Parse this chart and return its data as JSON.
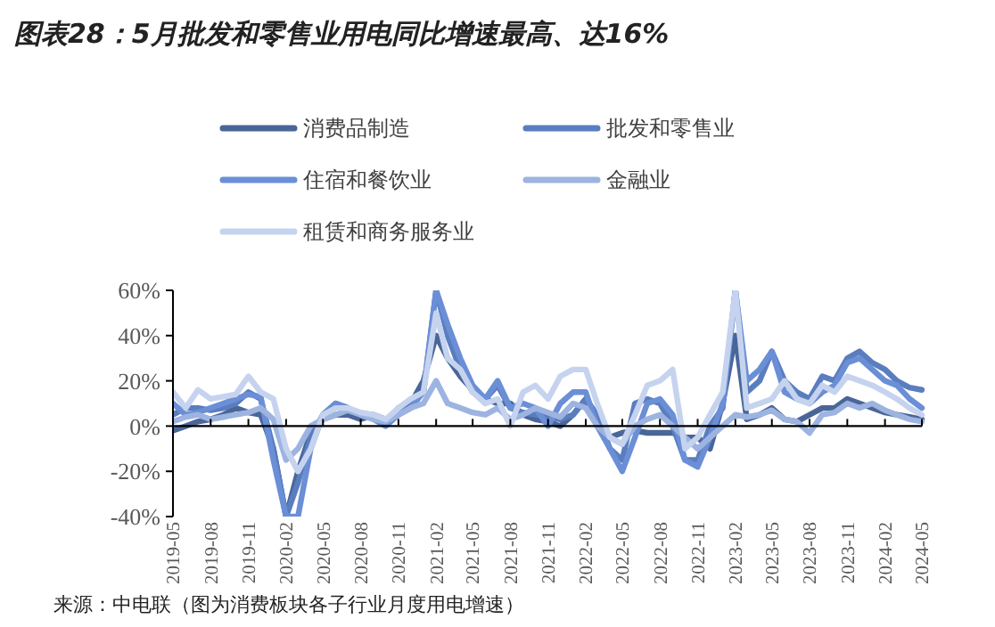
{
  "chart_data": {
    "type": "line",
    "title": "图表28：5月批发和零售业用电同比增速最高、达16%",
    "annotations": [
      "来源：中电联（图为消费板块各子行业月度用电增速）"
    ],
    "x": [
      "2019-05",
      "2019-06",
      "2019-07",
      "2019-08",
      "2019-09",
      "2019-10",
      "2019-11",
      "2019-12",
      "2020-01",
      "2020-02",
      "2020-03",
      "2020-04",
      "2020-05",
      "2020-06",
      "2020-07",
      "2020-08",
      "2020-09",
      "2020-10",
      "2020-11",
      "2020-12",
      "2021-01",
      "2021-02",
      "2021-03",
      "2021-04",
      "2021-05",
      "2021-06",
      "2021-07",
      "2021-08",
      "2021-09",
      "2021-10",
      "2021-11",
      "2021-12",
      "2022-01",
      "2022-02",
      "2022-03",
      "2022-04",
      "2022-05",
      "2022-06",
      "2022-07",
      "2022-08",
      "2022-09",
      "2022-10",
      "2022-11",
      "2022-12",
      "2023-01",
      "2023-02",
      "2023-03",
      "2023-04",
      "2023-05",
      "2023-06",
      "2023-07",
      "2023-08",
      "2023-09",
      "2023-10",
      "2023-11",
      "2023-12",
      "2024-01",
      "2024-02",
      "2024-03",
      "2024-04",
      "2024-05"
    ],
    "xlim": [
      "2019-05",
      "2024-05"
    ],
    "xticks": [
      "2019-05",
      "2019-08",
      "2019-11",
      "2020-02",
      "2020-05",
      "2020-08",
      "2020-11",
      "2021-02",
      "2021-05",
      "2021-08",
      "2021-11",
      "2022-02",
      "2022-05",
      "2022-08",
      "2022-11",
      "2023-02",
      "2023-05",
      "2023-08",
      "2023-11",
      "2024-02",
      "2024-05"
    ],
    "ylim": [
      -40,
      60
    ],
    "yticks": [
      {
        "value": -40,
        "label": "-40%"
      },
      {
        "value": -20,
        "label": "-20%"
      },
      {
        "value": 0,
        "label": "0%"
      },
      {
        "value": 20,
        "label": "20%"
      },
      {
        "value": 40,
        "label": "40%"
      },
      {
        "value": 60,
        "label": "60%"
      }
    ],
    "legend": "top",
    "marker": "none",
    "line_style": "solid",
    "series": [
      {
        "name": "消费品制造",
        "color": "#4a6699",
        "values": [
          -2,
          0,
          2,
          3,
          5,
          8,
          6,
          5,
          -10,
          -40,
          -20,
          -3,
          3,
          5,
          5,
          3,
          5,
          2,
          8,
          10,
          20,
          40,
          30,
          22,
          16,
          12,
          10,
          10,
          5,
          3,
          2,
          0,
          5,
          12,
          0,
          -5,
          -3,
          -2,
          -3,
          -3,
          -3,
          -5,
          -5,
          -10,
          10,
          40,
          3,
          5,
          8,
          3,
          2,
          5,
          8,
          8,
          12,
          10,
          8,
          6,
          5,
          4,
          3
        ]
      },
      {
        "name": "批发和零售业",
        "color": "#5a7dbf",
        "values": [
          5,
          8,
          8,
          7,
          8,
          10,
          15,
          12,
          -10,
          -40,
          -25,
          -5,
          5,
          10,
          8,
          5,
          5,
          3,
          5,
          10,
          15,
          60,
          40,
          25,
          15,
          12,
          18,
          8,
          6,
          5,
          4,
          3,
          5,
          12,
          5,
          -10,
          -15,
          10,
          12,
          10,
          0,
          -15,
          -15,
          0,
          8,
          60,
          15,
          20,
          33,
          20,
          15,
          12,
          22,
          20,
          30,
          33,
          28,
          25,
          20,
          17,
          16
        ]
      },
      {
        "name": "住宿和餐饮业",
        "color": "#6b8fd6",
        "values": [
          10,
          5,
          6,
          8,
          10,
          12,
          14,
          13,
          -15,
          -40,
          -40,
          -10,
          5,
          10,
          8,
          5,
          3,
          0,
          5,
          8,
          15,
          60,
          45,
          30,
          18,
          12,
          20,
          8,
          10,
          8,
          0,
          10,
          15,
          15,
          0,
          -10,
          -20,
          -5,
          10,
          12,
          5,
          -15,
          -18,
          -5,
          10,
          60,
          20,
          25,
          33,
          15,
          12,
          10,
          15,
          18,
          28,
          30,
          25,
          20,
          18,
          12,
          8
        ]
      },
      {
        "name": "金融业",
        "color": "#9db3e0",
        "values": [
          2,
          4,
          5,
          3,
          4,
          5,
          6,
          8,
          3,
          -15,
          -10,
          0,
          3,
          5,
          7,
          5,
          3,
          2,
          5,
          8,
          10,
          20,
          10,
          8,
          6,
          5,
          8,
          3,
          5,
          8,
          6,
          4,
          10,
          8,
          0,
          -5,
          -8,
          0,
          3,
          5,
          0,
          -5,
          -10,
          -5,
          0,
          5,
          4,
          5,
          7,
          3,
          2,
          -3,
          5,
          6,
          10,
          8,
          10,
          7,
          5,
          3,
          2
        ]
      },
      {
        "name": "租赁和商务服务业",
        "color": "#c5d3ef",
        "values": [
          15,
          8,
          16,
          12,
          13,
          14,
          22,
          15,
          12,
          -10,
          -20,
          -10,
          5,
          8,
          8,
          6,
          5,
          3,
          8,
          12,
          15,
          50,
          30,
          25,
          15,
          10,
          12,
          0,
          15,
          18,
          12,
          22,
          25,
          25,
          10,
          -5,
          -8,
          5,
          18,
          20,
          25,
          -10,
          -5,
          5,
          15,
          60,
          8,
          10,
          12,
          20,
          12,
          10,
          18,
          15,
          22,
          20,
          18,
          15,
          12,
          8,
          5
        ]
      }
    ]
  }
}
